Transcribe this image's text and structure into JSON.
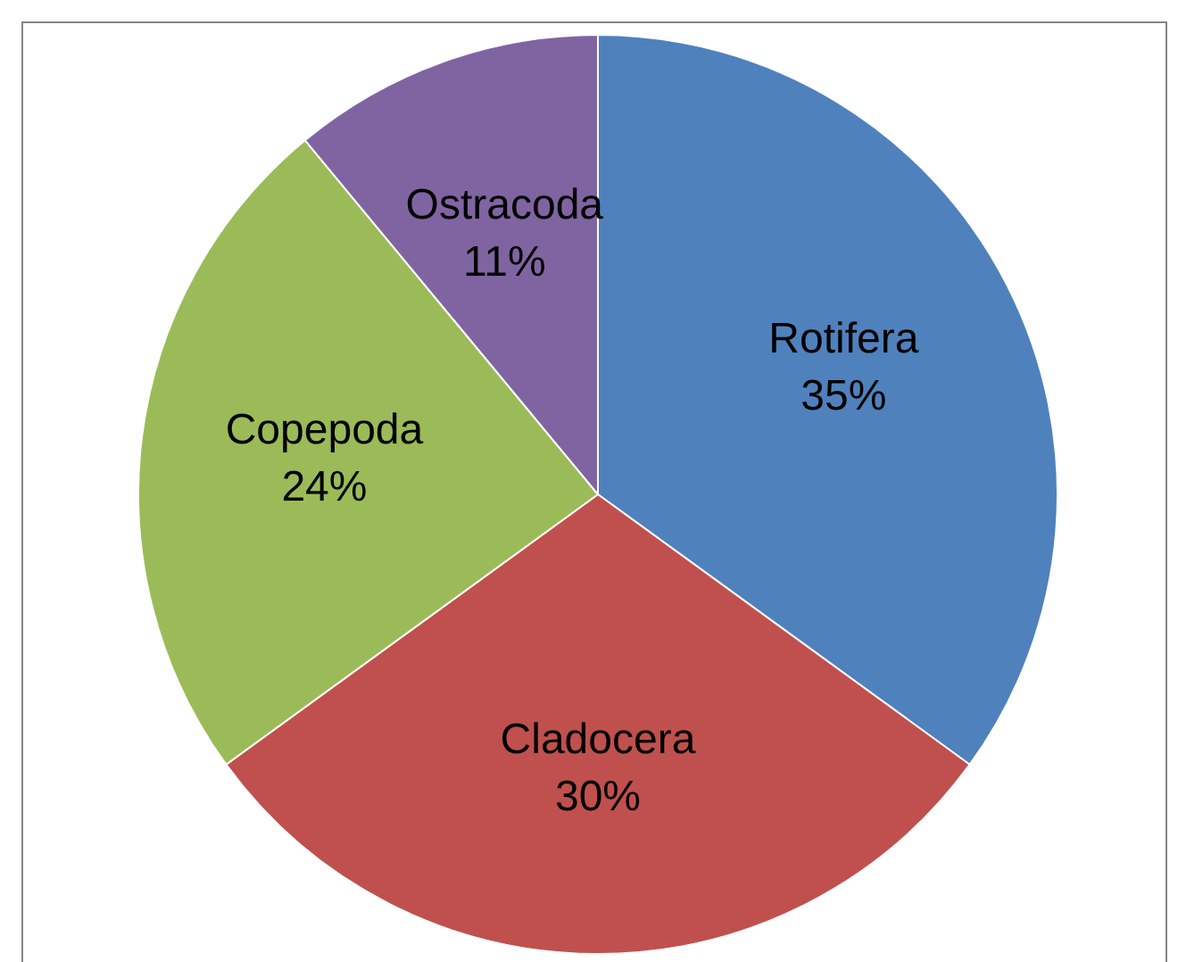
{
  "chart_data": {
    "type": "pie",
    "categories": [
      "Rotifera",
      "Cladocera",
      "Copepoda",
      "Ostracoda"
    ],
    "values": [
      35,
      30,
      24,
      11
    ],
    "value_labels": [
      "35%",
      "30%",
      "24%",
      "11%"
    ],
    "colors": [
      "#4f81bd",
      "#c0504d",
      "#9bbb59",
      "#8064a2"
    ],
    "legend": false
  }
}
